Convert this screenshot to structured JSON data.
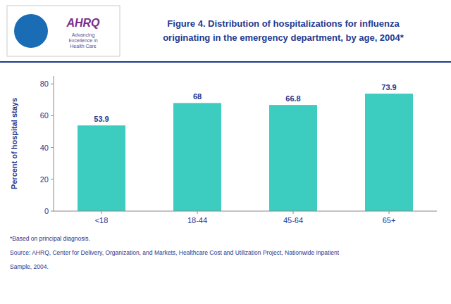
{
  "chart_data": {
    "type": "bar",
    "title": "Figure 4. Distribution of hospitalizations for influenza\noriginating in the emergency department, by age, 2004*",
    "categories": [
      "<18",
      "18-44",
      "45-64",
      "65+"
    ],
    "values": [
      53.9,
      68.0,
      66.8,
      73.9
    ],
    "color": "#3DCCC0",
    "ylabel": "Percent of hospital stays",
    "ylim": [
      0,
      85
    ],
    "yticks": [
      0,
      20,
      40,
      60,
      80
    ],
    "grid": false,
    "data_labels": true,
    "annotations": [
      "AHRQ",
      "Advancing\nExcellence in\nHealth Care",
      "*Based on principal diagnosis.",
      "Source: AHRQ, Center for Delivery, Organization, and Markets, Healthcare Cost and Utilization Project, Nationwide Inpatient",
      "Sample, 2004."
    ]
  }
}
